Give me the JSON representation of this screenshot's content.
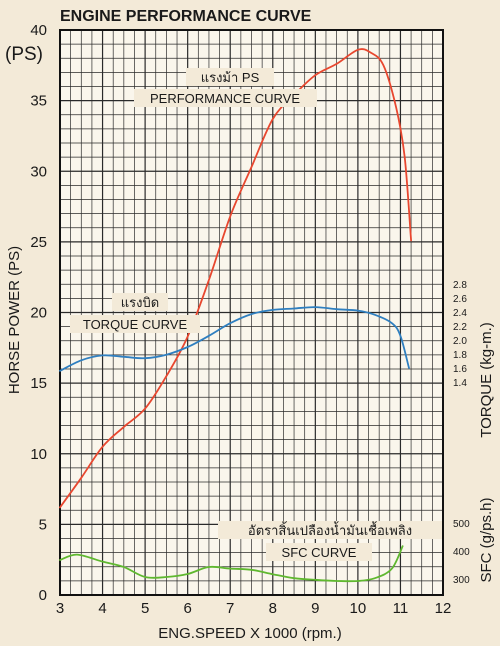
{
  "chart_data": {
    "type": "line",
    "title": "ENGINE PERFORMANCE CURVE",
    "unit_label": "(PS)",
    "xlabel": "ENG.SPEED X 1000 (rpm.)",
    "ylabel": "HORSE POWER (PS)",
    "xlim": [
      3,
      12
    ],
    "ylim": [
      0,
      40
    ],
    "x_ticks": [
      "3",
      "4",
      "5",
      "6",
      "7",
      "8",
      "9",
      "10",
      "11",
      "12"
    ],
    "y_ticks": [
      "0",
      "5",
      "10",
      "15",
      "20",
      "25",
      "30",
      "35",
      "40"
    ],
    "grid": true,
    "torque_axis": {
      "label": "TORQUE (kg-m.)",
      "ticks": [
        {
          "label": "1.4",
          "value": 1.4
        },
        {
          "label": "1.6",
          "value": 1.6
        },
        {
          "label": "1.8",
          "value": 1.8
        },
        {
          "label": "2.0",
          "value": 2.0
        },
        {
          "label": "2.2",
          "value": 2.2
        },
        {
          "label": "2.4",
          "value": 2.4
        },
        {
          "label": "2.6",
          "value": 2.6
        },
        {
          "label": "2.8",
          "value": 2.8
        }
      ]
    },
    "sfc_axis": {
      "label": "SFC (g/ps.h)",
      "ticks": [
        {
          "label": "300",
          "value": 300
        },
        {
          "label": "400",
          "value": 400
        },
        {
          "label": "500",
          "value": 500
        }
      ]
    },
    "series": [
      {
        "name": "PERFORMANCE CURVE",
        "thai_name": "แรงม้า PS",
        "axis": "ps",
        "color": "#e8472f",
        "x": [
          3.0,
          3.5,
          4.0,
          4.5,
          5.0,
          5.5,
          6.0,
          6.5,
          7.0,
          7.5,
          8.0,
          8.5,
          9.0,
          9.5,
          10.0,
          10.3,
          10.6,
          10.9,
          11.1,
          11.25
        ],
        "y": [
          6.2,
          8.3,
          10.5,
          11.9,
          13.2,
          15.5,
          18.3,
          22.3,
          26.8,
          30.3,
          33.7,
          35.4,
          36.8,
          37.6,
          38.6,
          38.4,
          37.5,
          34.5,
          31.0,
          25.1
        ]
      },
      {
        "name": "TORQUE CURVE",
        "thai_name": "แรงบิด",
        "axis": "torque",
        "color": "#2f7fc0",
        "x": [
          3.0,
          3.5,
          4.0,
          4.5,
          5.0,
          5.5,
          6.0,
          6.5,
          7.0,
          7.5,
          8.0,
          8.5,
          9.0,
          9.5,
          10.0,
          10.4,
          10.8,
          11.0,
          11.2
        ],
        "y": [
          1.56,
          1.71,
          1.78,
          1.76,
          1.74,
          1.79,
          1.9,
          2.06,
          2.24,
          2.37,
          2.43,
          2.45,
          2.47,
          2.44,
          2.42,
          2.36,
          2.24,
          2.06,
          1.6
        ]
      },
      {
        "name": "SFC CURVE",
        "thai_name": "อัตราสิ้นเปลืองน้ำมันเชื้อเพลิง",
        "axis": "sfc",
        "color": "#5fb82f",
        "x": [
          3.0,
          3.4,
          4.0,
          4.5,
          5.0,
          5.5,
          6.0,
          6.5,
          7.0,
          7.5,
          8.0,
          8.5,
          9.0,
          9.5,
          10.0,
          10.4,
          10.8,
          11.05
        ],
        "y": [
          368,
          387,
          362,
          343,
          307,
          307,
          318,
          343,
          337,
          333,
          317,
          303,
          297,
          293,
          293,
          303,
          337,
          417
        ]
      }
    ]
  }
}
